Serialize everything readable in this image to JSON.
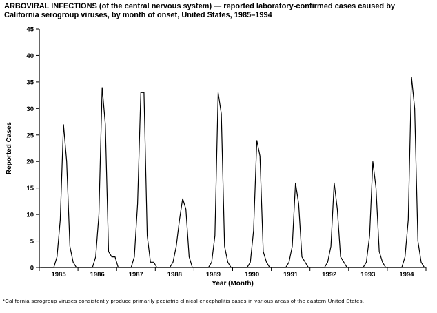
{
  "footnote": {
    "text": "*California serogroup viruses consistently produce primarily pediatric clinical encephalitis cases in various areas of the eastern United States."
  },
  "chart_data": {
    "type": "line",
    "title": "ARBOVIRAL INFECTIONS (of the central nervous system) — reported laboratory-confirmed cases caused by California serogroup viruses, by month of onset, United States, 1985–1994",
    "xlabel": "Year (Month)",
    "ylabel": "Reported Cases",
    "ylim": [
      0,
      45
    ],
    "yticks": [
      0,
      5,
      10,
      15,
      20,
      25,
      30,
      35,
      40,
      45
    ],
    "grid": false,
    "legend": "none",
    "categories": [
      "1985",
      "1986",
      "1987",
      "1988",
      "1989",
      "1990",
      "1991",
      "1992",
      "1993",
      "1994"
    ],
    "months_per_year": 12,
    "annual_peaks": [
      27,
      34,
      33,
      13,
      33,
      24,
      16,
      16,
      20,
      36
    ],
    "series": [
      {
        "name": "Reported cases by month of onset",
        "values": [
          0,
          0,
          0,
          0,
          0,
          2,
          9,
          27,
          20,
          4,
          1,
          0,
          0,
          0,
          0,
          0,
          0,
          2,
          10,
          34,
          27,
          3,
          2,
          2,
          0,
          0,
          0,
          0,
          0,
          2,
          12,
          33,
          33,
          6,
          1,
          1,
          0,
          0,
          0,
          0,
          0,
          1,
          4,
          9,
          13,
          11,
          2,
          0,
          0,
          0,
          0,
          0,
          0,
          1,
          6,
          33,
          29,
          4,
          1,
          0,
          0,
          0,
          0,
          0,
          0,
          1,
          7,
          24,
          21,
          3,
          1,
          0,
          0,
          0,
          0,
          0,
          0,
          1,
          4,
          16,
          12,
          2,
          1,
          0,
          0,
          0,
          0,
          0,
          0,
          1,
          4,
          16,
          11,
          2,
          1,
          0,
          0,
          0,
          0,
          0,
          0,
          1,
          6,
          20,
          15,
          3,
          1,
          0,
          0,
          0,
          0,
          0,
          0,
          2,
          9,
          36,
          30,
          5,
          1,
          0
        ]
      }
    ],
    "line_color": "#000000"
  }
}
